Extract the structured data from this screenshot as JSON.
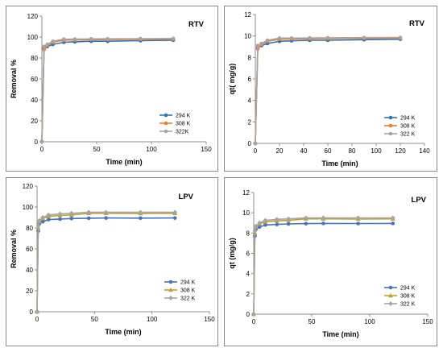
{
  "chart_data": [
    {
      "type": "line",
      "title": "RTV",
      "xlabel": "Time (min)",
      "ylabel": "Removal %",
      "xlim": [
        0,
        150
      ],
      "ylim": [
        0,
        120
      ],
      "xticks": [
        "0",
        "50",
        "100",
        "150"
      ],
      "yticks": [
        "0",
        "20",
        "40",
        "60",
        "80",
        "100",
        "120"
      ],
      "legend_position": "bottom-right",
      "x": [
        0,
        2,
        5,
        10,
        20,
        30,
        45,
        60,
        90,
        120
      ],
      "series": [
        {
          "name": "294 K",
          "color": "#2e75b6",
          "marker": "circle",
          "values": [
            0,
            89,
            91,
            93,
            95,
            95.5,
            96,
            96,
            96.5,
            97
          ]
        },
        {
          "name": "308 K",
          "color": "#ed7d31",
          "marker": "circle",
          "values": [
            0,
            88,
            92,
            95,
            97,
            97.2,
            97.5,
            97.6,
            97.8,
            98
          ]
        },
        {
          "name": "322K",
          "color": "#a5a5a5",
          "marker": "circle",
          "values": [
            0,
            91,
            93,
            96,
            98,
            98,
            98.2,
            98.3,
            98.5,
            98.6
          ]
        }
      ]
    },
    {
      "type": "line",
      "title": "RTV",
      "xlabel": "Time (min)",
      "ylabel": "qt( mg/g)",
      "xlim": [
        0,
        140
      ],
      "ylim": [
        0,
        12
      ],
      "xticks": [
        "0",
        "20",
        "40",
        "60",
        "80",
        "100",
        "120",
        "140"
      ],
      "yticks": [
        "0",
        "2",
        "4",
        "6",
        "8",
        "10",
        "12"
      ],
      "legend_position": "bottom-right",
      "x": [
        0,
        2,
        5,
        10,
        20,
        30,
        45,
        60,
        90,
        120
      ],
      "series": [
        {
          "name": "294 K",
          "color": "#2e75b6",
          "marker": "circle",
          "values": [
            0,
            8.9,
            9.1,
            9.3,
            9.5,
            9.55,
            9.6,
            9.6,
            9.65,
            9.7
          ]
        },
        {
          "name": "308 K",
          "color": "#ed7d31",
          "marker": "circle",
          "values": [
            0,
            8.8,
            9.2,
            9.5,
            9.7,
            9.72,
            9.75,
            9.76,
            9.78,
            9.8
          ]
        },
        {
          "name": "322 K",
          "color": "#a5a5a5",
          "marker": "circle",
          "values": [
            0,
            9.1,
            9.3,
            9.6,
            9.8,
            9.8,
            9.82,
            9.83,
            9.85,
            9.86
          ]
        }
      ]
    },
    {
      "type": "line",
      "title": "LPV",
      "xlabel": "Time (min)",
      "ylabel": "Removal %",
      "xlim": [
        0,
        150
      ],
      "ylim": [
        0,
        120
      ],
      "xticks": [
        "0",
        "50",
        "100",
        "150"
      ],
      "yticks": [
        "0",
        "20",
        "40",
        "60",
        "80",
        "100",
        "120"
      ],
      "legend_position": "bottom-right",
      "x": [
        0,
        1,
        2,
        5,
        10,
        20,
        30,
        45,
        60,
        90,
        120
      ],
      "series": [
        {
          "name": "294 K",
          "color": "#4472c4",
          "marker": "circle",
          "values": [
            0,
            77,
            84,
            86,
            88,
            88.5,
            89,
            89.3,
            89.5,
            89.4,
            89.5
          ]
        },
        {
          "name": "308 K",
          "color": "#bfa030",
          "marker": "triangle",
          "values": [
            0,
            80,
            86,
            89,
            91,
            92,
            92.5,
            94,
            94,
            93.8,
            94
          ]
        },
        {
          "name": "322 K",
          "color": "#a5a5a5",
          "marker": "diamond",
          "values": [
            0,
            82,
            87,
            90,
            92.5,
            93.5,
            94,
            95,
            95,
            95,
            95
          ]
        }
      ]
    },
    {
      "type": "line",
      "title": "LPV",
      "xlabel": "Time (min)",
      "ylabel": "qt (mg/g)",
      "xlim": [
        0,
        150
      ],
      "ylim": [
        0,
        12
      ],
      "xticks": [
        "0",
        "50",
        "100",
        "150"
      ],
      "yticks": [
        "0",
        "2",
        "4",
        "6",
        "8",
        "10",
        "12"
      ],
      "legend_position": "bottom-right",
      "x": [
        0,
        1,
        2,
        5,
        10,
        20,
        30,
        45,
        60,
        90,
        120
      ],
      "series": [
        {
          "name": "294 K",
          "color": "#4472c4",
          "marker": "circle",
          "values": [
            0,
            7.7,
            8.4,
            8.6,
            8.8,
            8.85,
            8.9,
            8.93,
            8.95,
            8.94,
            8.95
          ]
        },
        {
          "name": "308 K",
          "color": "#bfa030",
          "marker": "triangle",
          "values": [
            0,
            8.0,
            8.6,
            8.9,
            9.1,
            9.2,
            9.25,
            9.4,
            9.4,
            9.38,
            9.4
          ]
        },
        {
          "name": "322 K",
          "color": "#a5a5a5",
          "marker": "diamond",
          "values": [
            0,
            8.2,
            8.7,
            9.0,
            9.25,
            9.35,
            9.4,
            9.5,
            9.5,
            9.5,
            9.5
          ]
        }
      ]
    }
  ]
}
